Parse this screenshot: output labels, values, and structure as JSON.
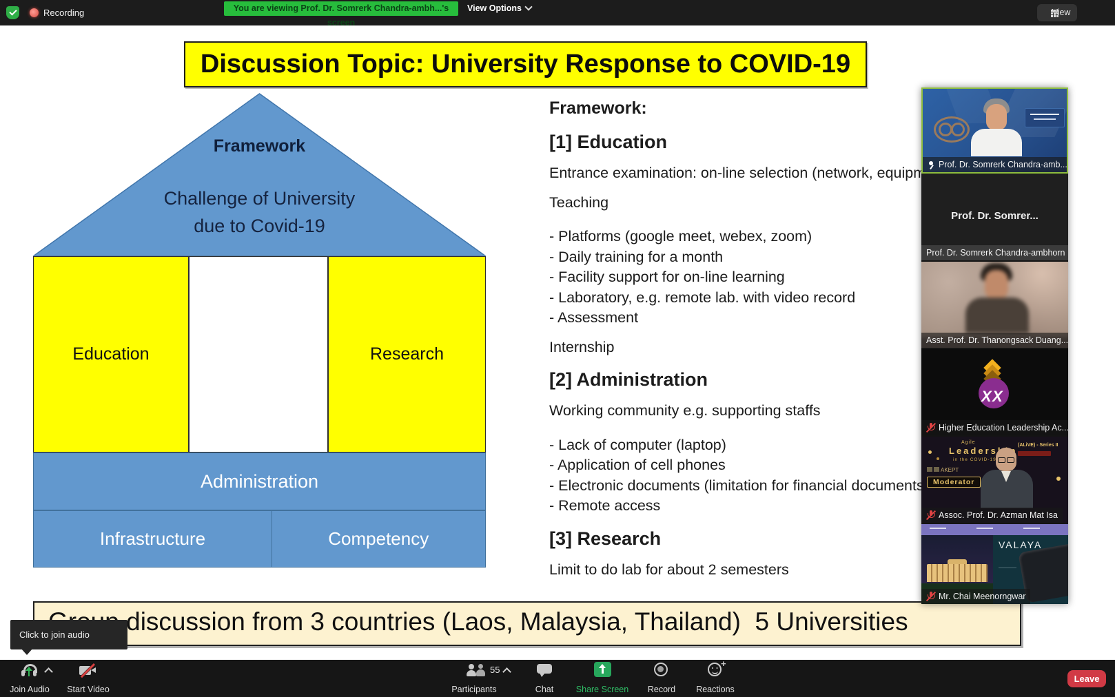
{
  "colors": {
    "accent_green": "#27bd3c",
    "share_green": "#27a75c",
    "leave_red": "#d13a45",
    "slide_yellow": "#ffff00",
    "house_blue": "#6298ce",
    "banner_cream": "#fdf2d0",
    "muted_mic_red": "#e04343",
    "active_speaker_border": "#8fbe3f"
  },
  "top_bar": {
    "recording_label": "Recording",
    "viewing_banner": "You are viewing Prof. Dr. Somrerk Chandra-ambh...'s screen",
    "view_options_label": "View Options",
    "view_button_label": "View"
  },
  "slide": {
    "title": "Discussion Topic: University Response to COVID-19",
    "house": {
      "roof_title": "Framework",
      "roof_line1": "Challenge of University",
      "roof_line2": "due to Covid-19",
      "pillar_left": "Education",
      "pillar_right": "Research",
      "beam": "Administration",
      "base_left": "Infrastructure",
      "base_right": "Competency"
    },
    "outline": {
      "heading": "Framework:",
      "sections": [
        {
          "title": "[1] Education",
          "lines": [
            "Entrance examination: on-line selection (network, equipment",
            "Teaching",
            "- Platforms (google meet, webex, zoom)",
            "- Daily training for a month",
            "- Facility support for on-line learning",
            "- Laboratory, e.g. remote lab. with video record",
            "- Assessment",
            "Internship"
          ]
        },
        {
          "title": "[2] Administration",
          "lines": [
            "Working community e.g. supporting staffs",
            "- Lack of computer (laptop)",
            "- Application of cell phones",
            "- Electronic documents (limitation for financial documents",
            "- Remote access"
          ]
        },
        {
          "title": "[3] Research",
          "lines": [
            "Limit to do lab for about 2 semesters"
          ]
        }
      ]
    },
    "bottom_banner": "Group discussion from 3 countries (Laos, Malaysia, Thailand)  5 Universities"
  },
  "tooltip": {
    "text": "Click to join audio"
  },
  "panel": {
    "tiles": [
      {
        "label": "Prof. Dr. Somrerk Chandra-amb...",
        "pinned": true
      },
      {
        "display_name": "Prof. Dr. Somrer...",
        "label": "Prof. Dr. Somrerk Chandra-ambhorn"
      },
      {
        "label": "Asst. Prof. Dr. Thanongsack Duang..."
      },
      {
        "label": "Higher Education Leadership Ac...",
        "muted": true
      },
      {
        "label": "Assoc. Prof. Dr. Azman Mat Isa",
        "muted": true,
        "overlay": {
          "brand_pre": "Agile",
          "brand": "Leadership",
          "brand_sub": "in the COVID-19 Era",
          "series": "(ALiVE) - Series II",
          "org": "AKEPT",
          "badge": "Moderator"
        }
      },
      {
        "label": "Mr. Chai Meenorngwar",
        "muted": true,
        "overlay": {
          "brand": "VALAYA"
        }
      }
    ]
  },
  "toolbar": {
    "join_audio": "Join Audio",
    "start_video": "Start Video",
    "participants": "Participants",
    "participants_count": "55",
    "chat": "Chat",
    "share_screen": "Share Screen",
    "record": "Record",
    "reactions": "Reactions",
    "leave": "Leave"
  }
}
